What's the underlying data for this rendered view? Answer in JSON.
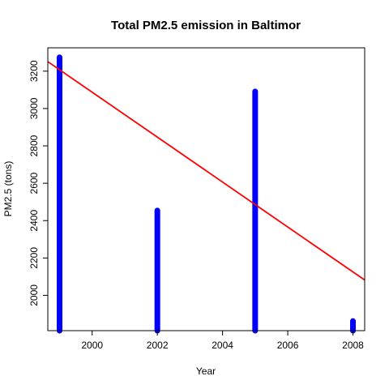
{
  "chart_data": {
    "type": "bar",
    "title": "Total PM2.5 emission in Baltimor",
    "xlabel": "Year",
    "ylabel": "PM2.5 (tons)",
    "x": [
      1999,
      2002,
      2005,
      2008
    ],
    "values": [
      3274.18,
      2453.92,
      3091.35,
      1862.28
    ],
    "xlim": [
      1998.64,
      2008.36
    ],
    "ylim": [
      1811.0,
      3325.0
    ],
    "xticks": [
      2000,
      2002,
      2004,
      2006,
      2008
    ],
    "yticks": [
      2000,
      2200,
      2400,
      2600,
      2800,
      3000,
      3200
    ],
    "trend_line": {
      "x": [
        1998.64,
        2008.36
      ],
      "y": [
        3251.0,
        2082.0
      ]
    },
    "colors": {
      "bars": "#0000ff",
      "trend": "#ff0000"
    },
    "grid": false
  }
}
